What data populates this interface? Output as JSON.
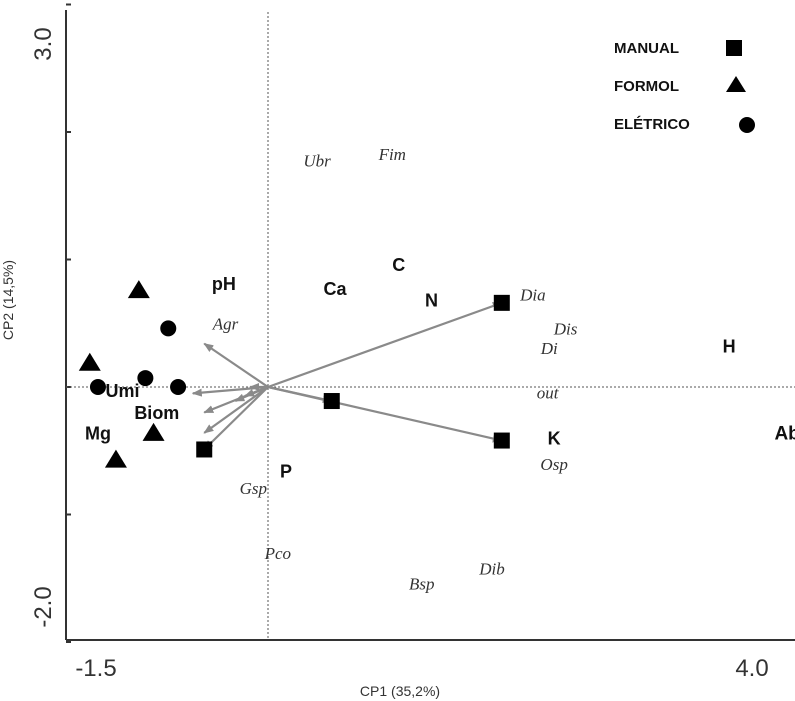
{
  "chart_data": {
    "type": "scatter",
    "xlabel": "CP1 (35,2%)",
    "ylabel": "CP2 (14,5%)",
    "xlim": [
      -1.5,
      4.0
    ],
    "ylim": [
      -2.0,
      3.0
    ],
    "x_tick_labels": [
      "-1.5",
      "4.0"
    ],
    "y_tick_labels": [
      "3.0",
      "-2.0"
    ],
    "grid": false,
    "origin_lines": "dotted",
    "legend": {
      "position": "top-right",
      "entries": [
        {
          "label": "MANUAL",
          "marker": "square"
        },
        {
          "label": "FORMOL",
          "marker": "triangle"
        },
        {
          "label": "ELÉTRICO",
          "marker": "circle"
        }
      ]
    },
    "series": [
      {
        "name": "MANUAL",
        "marker": "square",
        "points": [
          [
            1.43,
            0.66
          ],
          [
            1.43,
            -0.42
          ],
          [
            0.39,
            -0.11
          ],
          [
            -0.39,
            -0.49
          ]
        ]
      },
      {
        "name": "FORMOL",
        "marker": "triangle",
        "points": [
          [
            -0.79,
            0.76
          ],
          [
            -1.09,
            0.19
          ],
          [
            -0.7,
            -0.36
          ],
          [
            -0.93,
            -0.57
          ]
        ]
      },
      {
        "name": "ELÉTRICO",
        "marker": "circle",
        "points": [
          [
            -0.61,
            0.46
          ],
          [
            -0.75,
            0.07
          ],
          [
            -1.04,
            0.0
          ],
          [
            -0.55,
            0.0
          ]
        ]
      }
    ],
    "vectors": [
      [
        1.43,
        0.66
      ],
      [
        1.43,
        -0.42
      ],
      [
        0.39,
        -0.11
      ],
      [
        -0.39,
        -0.49
      ],
      [
        -0.39,
        -0.36
      ],
      [
        -0.39,
        -0.2
      ],
      [
        -0.39,
        0.34
      ],
      [
        -0.46,
        -0.05
      ],
      [
        -0.2,
        -0.11
      ],
      [
        -0.14,
        -0.07
      ],
      [
        -0.11,
        0.0
      ]
    ],
    "environmental_labels": [
      {
        "text": "pH",
        "x": -0.27,
        "y": 0.76
      },
      {
        "text": "Ca",
        "x": 0.41,
        "y": 0.72
      },
      {
        "text": "C",
        "x": 0.8,
        "y": 0.91
      },
      {
        "text": "N",
        "x": 1.0,
        "y": 0.63
      },
      {
        "text": "H",
        "x": 2.82,
        "y": 0.27
      },
      {
        "text": "Umi",
        "x": -0.89,
        "y": -0.08
      },
      {
        "text": "Biom",
        "x": -0.68,
        "y": -0.25
      },
      {
        "text": "Mg",
        "x": -1.04,
        "y": -0.41
      },
      {
        "text": "K",
        "x": 1.75,
        "y": -0.45
      },
      {
        "text": "P",
        "x": 0.11,
        "y": -0.71
      },
      {
        "text": "Abundância",
        "x": 3.43,
        "y": -0.41
      }
    ],
    "species_labels": [
      {
        "text": "Ubr",
        "x": 0.3,
        "y": 1.73
      },
      {
        "text": "Fim",
        "x": 0.76,
        "y": 1.78
      },
      {
        "text": "Agr",
        "x": -0.26,
        "y": 0.45
      },
      {
        "text": "Dia",
        "x": 1.62,
        "y": 0.68
      },
      {
        "text": "Dis",
        "x": 1.82,
        "y": 0.41
      },
      {
        "text": "Di",
        "x": 1.72,
        "y": 0.26
      },
      {
        "text": "out",
        "x": 1.71,
        "y": -0.09
      },
      {
        "text": "Osp",
        "x": 1.75,
        "y": -0.65
      },
      {
        "text": "Gsp",
        "x": -0.09,
        "y": -0.84
      },
      {
        "text": "Pco",
        "x": 0.06,
        "y": -1.35
      },
      {
        "text": "Bsp",
        "x": 0.94,
        "y": -1.59
      },
      {
        "text": "Dib",
        "x": 1.37,
        "y": -1.47
      }
    ]
  }
}
